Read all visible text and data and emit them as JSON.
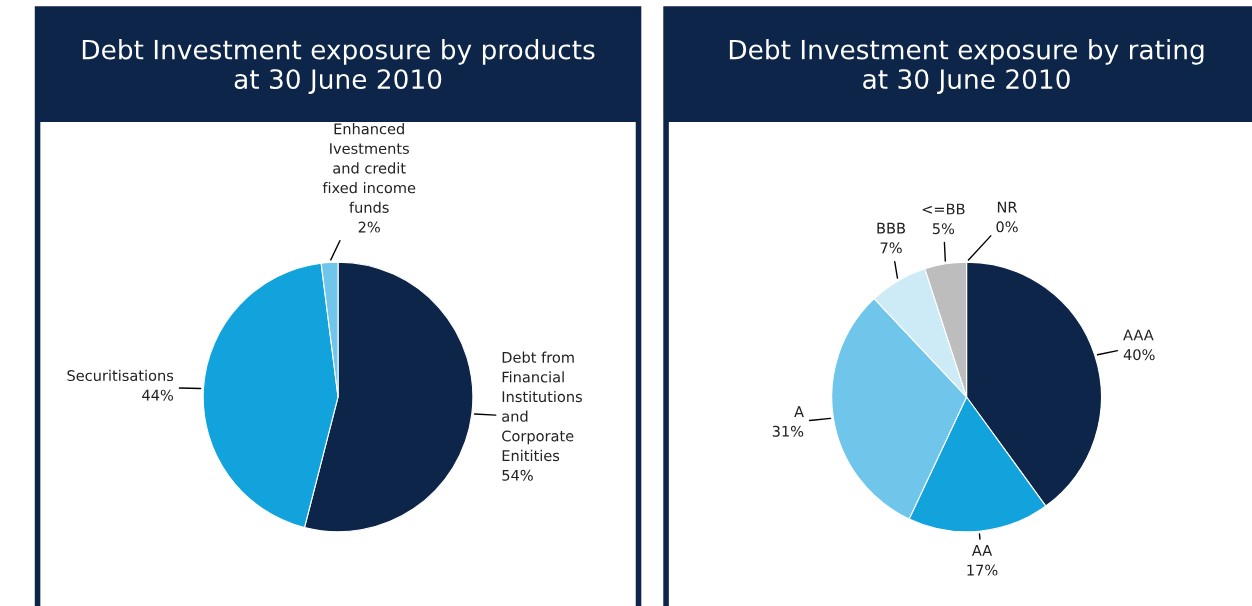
{
  "chart_data": [
    {
      "type": "pie",
      "title": "Debt Investment exposure by products\nat 30 June 2010",
      "categories": [
        "Debt from\nFinancial\nInstitutions\nand\nCorporate\nEnitities",
        "Securitisations",
        "Enhanced\nIvestments\nand credit\nfixed income\nfunds"
      ],
      "values": [
        54,
        44,
        2
      ],
      "value_labels": [
        "54%",
        "44%",
        "2%"
      ],
      "colors": [
        "#0d2549",
        "#12a3dc",
        "#6fc6ea"
      ]
    },
    {
      "type": "pie",
      "title": "Debt Investment exposure by rating\nat 30 June 2010",
      "categories": [
        "AAA",
        "AA",
        "A",
        "BBB",
        "<=BB",
        "NR"
      ],
      "values": [
        40,
        17,
        31,
        7,
        5,
        0
      ],
      "value_labels": [
        "40%",
        "17%",
        "31%",
        "7%",
        "5%",
        "0%"
      ],
      "colors": [
        "#0d2549",
        "#12a3dc",
        "#6fc6ea",
        "#cdeaf7",
        "#bdbdbd",
        "#6e6e6e"
      ]
    }
  ]
}
